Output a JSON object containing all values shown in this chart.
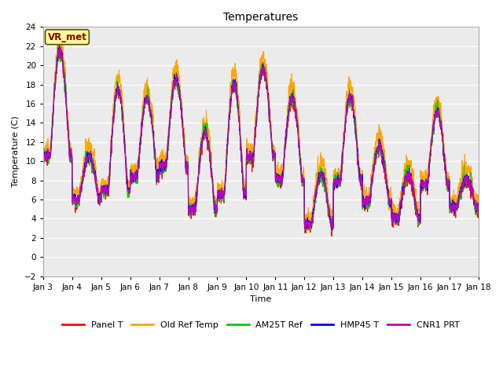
{
  "title": "Temperatures",
  "xlabel": "Time",
  "ylabel": "Temperature (C)",
  "ylim": [
    -2,
    24
  ],
  "yticks": [
    -2,
    0,
    2,
    4,
    6,
    8,
    10,
    12,
    14,
    16,
    18,
    20,
    22,
    24
  ],
  "x_labels": [
    "Jan 3",
    "Jan 4",
    "Jan 5",
    "Jan 6",
    "Jan 7",
    "Jan 8",
    "Jan 9",
    "Jan 10",
    "Jan 11",
    "Jan 12",
    "Jan 13",
    "Jan 14",
    "Jan 15",
    "Jan 16",
    "Jan 17",
    "Jan 18"
  ],
  "annotation_text": "VR_met",
  "annotation_color": "#8B0000",
  "annotation_bg": "#FFFFA0",
  "series": [
    {
      "label": "Panel T",
      "color": "#FF0000",
      "lw": 0.8
    },
    {
      "label": "Old Ref Temp",
      "color": "#FFA500",
      "lw": 0.8
    },
    {
      "label": "AM25T Ref",
      "color": "#00CC00",
      "lw": 0.8
    },
    {
      "label": "HMP45 T",
      "color": "#0000FF",
      "lw": 0.8
    },
    {
      "label": "CNR1 PRT",
      "color": "#BB00BB",
      "lw": 0.8
    }
  ],
  "n_points": 2160,
  "n_days": 15,
  "figsize": [
    6.4,
    4.8
  ],
  "dpi": 100,
  "plot_bg": "#EBEBEB",
  "fig_bg": "#FFFFFF",
  "grid_color": "#FFFFFF",
  "title_fontsize": 10,
  "label_fontsize": 8,
  "tick_fontsize": 7.5
}
